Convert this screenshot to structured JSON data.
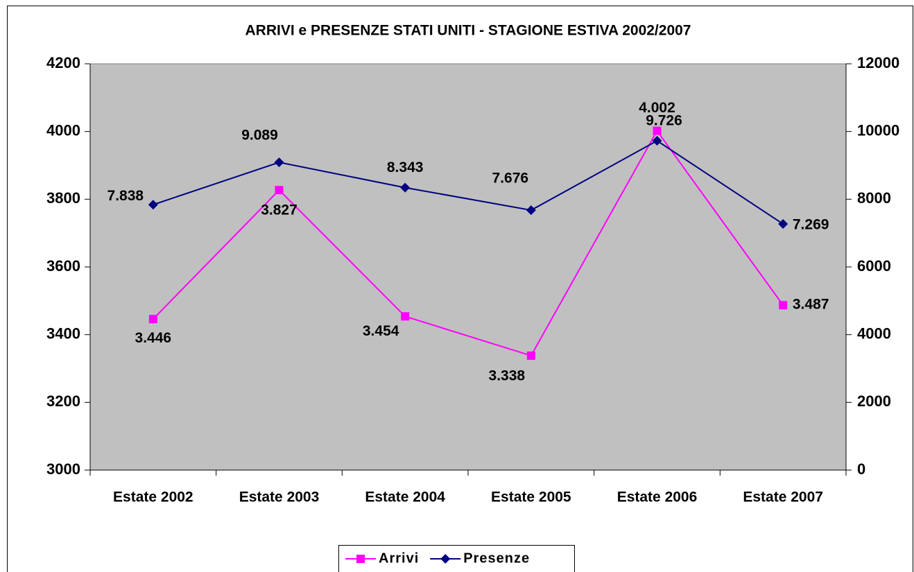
{
  "chart_data": {
    "type": "line",
    "title": "ARRIVI e PRESENZE STATI UNITI - STAGIONE ESTIVA 2002/2007",
    "categories": [
      "Estate 2002",
      "Estate 2003",
      "Estate 2004",
      "Estate 2005",
      "Estate 2006",
      "Estate 2007"
    ],
    "series": [
      {
        "name": "Arrivi",
        "color": "#ff00ff",
        "marker": "square",
        "values": [
          3446,
          3827,
          3454,
          3338,
          4002,
          3487
        ],
        "value_labels": [
          "3.446",
          "3.827",
          "3.454",
          "3.338",
          "4.002",
          "3.487"
        ]
      },
      {
        "name": "Presenze",
        "color": "#000080",
        "marker": "diamond",
        "axis": "y2",
        "values": [
          7838,
          9089,
          8343,
          7676,
          9726,
          7269
        ],
        "value_labels": [
          "7.838",
          "9.089",
          "8.343",
          "7.676",
          "9.726",
          "7.269"
        ]
      }
    ],
    "ylim": [
      3000,
      4200
    ],
    "yticks": [
      3000,
      3200,
      3400,
      3600,
      3800,
      4000,
      4200
    ],
    "y2lim": [
      0,
      12000
    ],
    "y2ticks": [
      0,
      2000,
      4000,
      6000,
      8000,
      10000,
      12000
    ],
    "legend": "bottom",
    "plot_background": "#c0c0c0"
  }
}
